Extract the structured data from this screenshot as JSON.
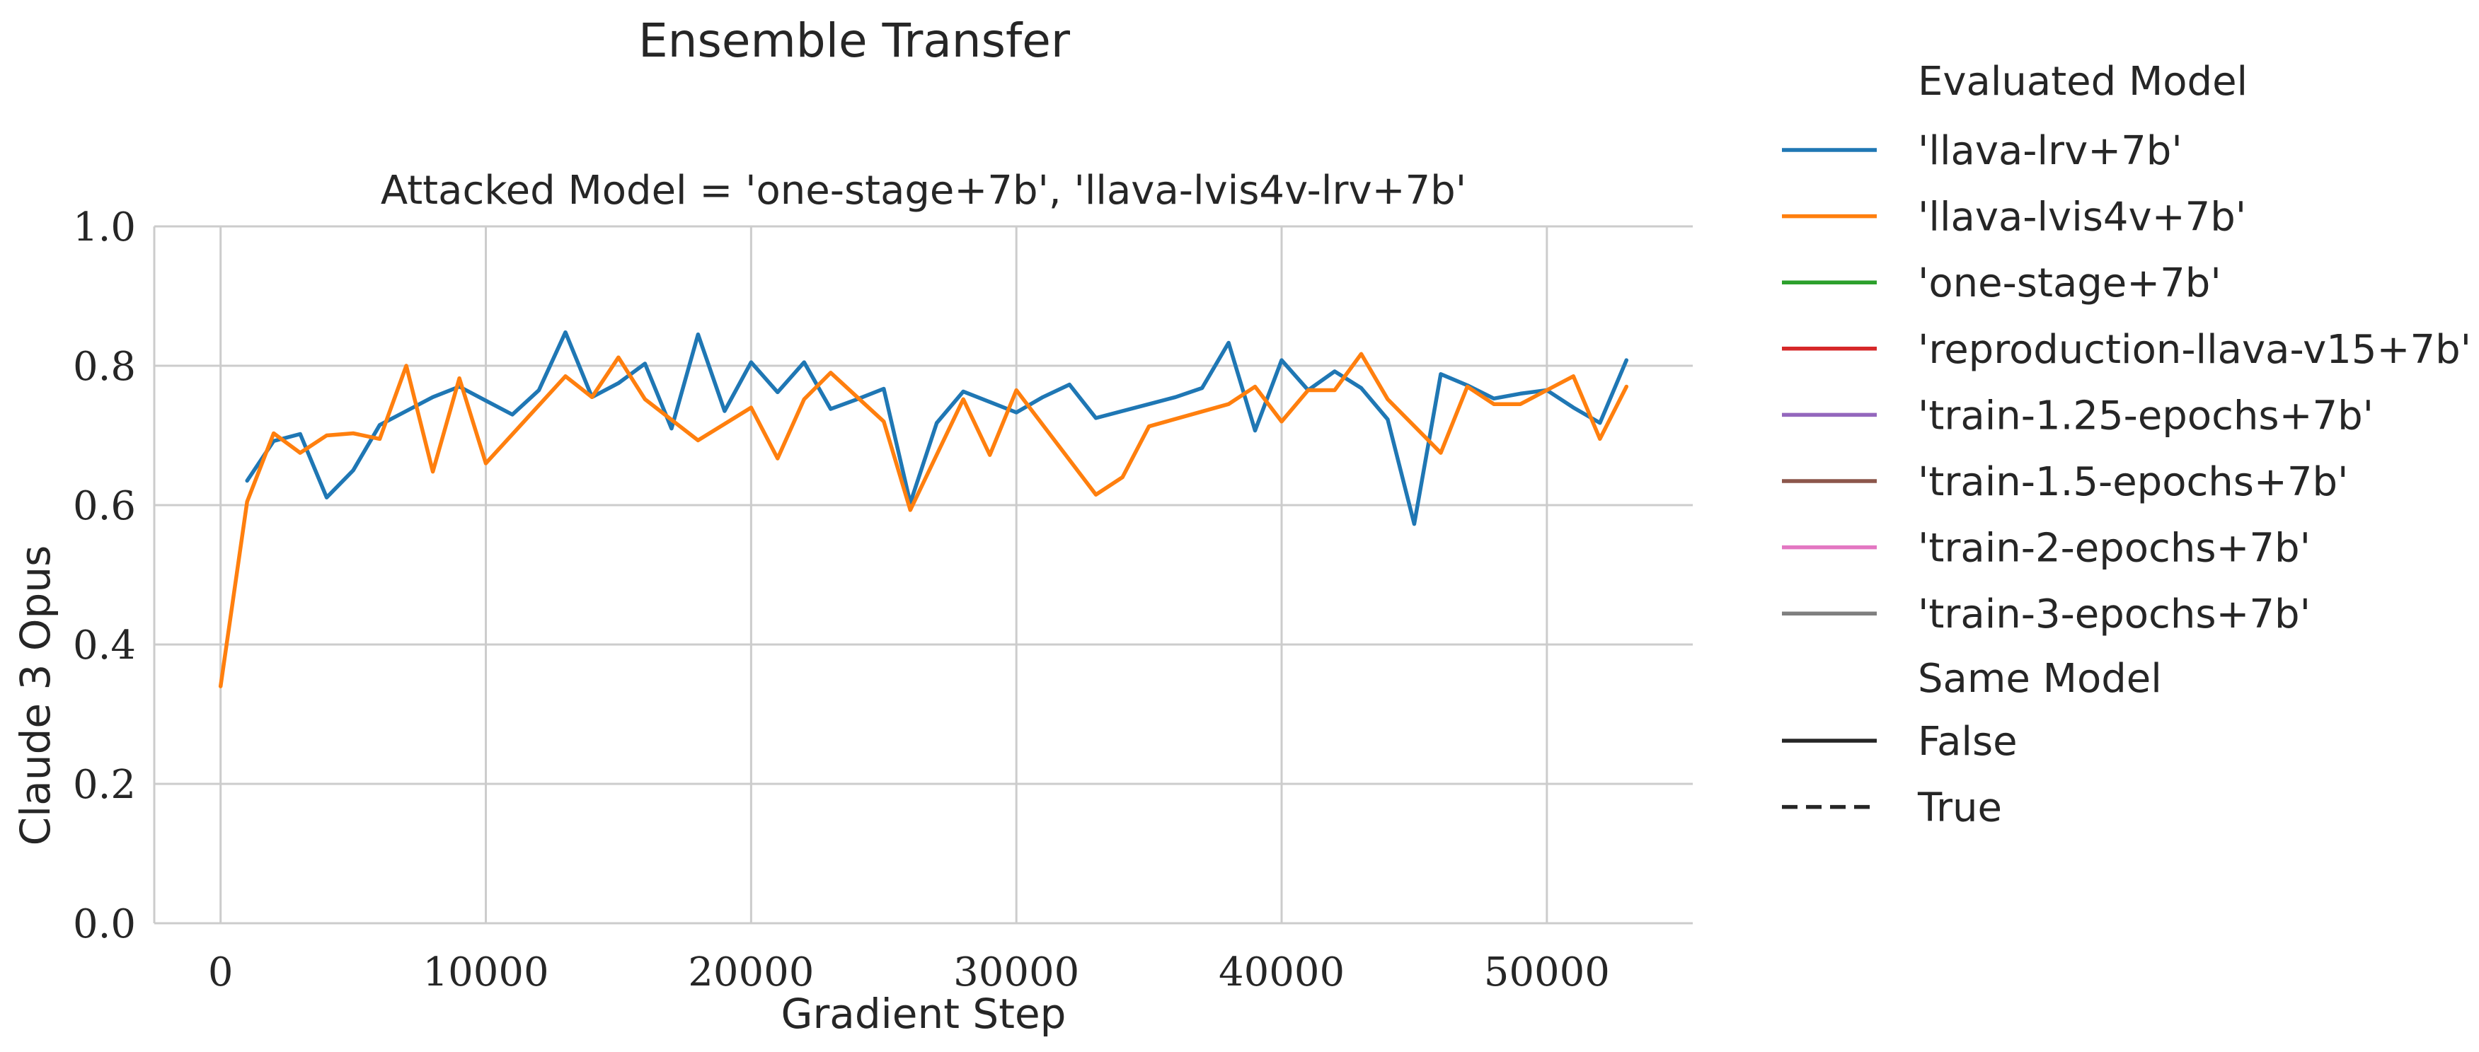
{
  "chart_data": {
    "type": "line",
    "title": "Ensemble Transfer",
    "subtitle": "Attacked Model = 'one-stage+7b', 'llava-lvis4v-lrv+7b'",
    "xlabel": "Gradient Step",
    "ylabel": "Claude 3 Opus",
    "xlim": [
      -2500,
      55500
    ],
    "ylim": [
      0.0,
      1.0
    ],
    "x_ticks": [
      0,
      10000,
      20000,
      30000,
      40000,
      50000
    ],
    "x_tick_labels": [
      "0",
      "10000",
      "20000",
      "30000",
      "40000",
      "50000"
    ],
    "y_ticks": [
      0.0,
      0.2,
      0.4,
      0.6,
      0.8,
      1.0
    ],
    "y_tick_labels": [
      "0.0",
      "0.2",
      "0.4",
      "0.6",
      "0.8",
      "1.0"
    ],
    "grid": true,
    "legend_placement": "outside-right",
    "series": [
      {
        "name": "'llava-lrv+7b'",
        "color": "#1f77b4",
        "x": [
          1000,
          2000,
          3000,
          4000,
          5000,
          6000,
          7000,
          8000,
          9000,
          10000,
          11000,
          12000,
          13000,
          14000,
          15000,
          16000,
          17000,
          18000,
          19000,
          20000,
          21000,
          22000,
          23000,
          24000,
          25000,
          26000,
          27000,
          28000,
          29000,
          30000,
          31000,
          32000,
          33000,
          34000,
          35000,
          36000,
          37000,
          38000,
          39000,
          40000,
          41000,
          42000,
          43000,
          44000,
          45000,
          46000,
          47000,
          48000,
          49000,
          50000,
          51000,
          52000,
          53000
        ],
        "y": [
          0.635,
          0.692,
          0.702,
          0.611,
          0.65,
          0.715,
          0.735,
          0.755,
          0.77,
          0.75,
          0.73,
          0.765,
          0.848,
          0.755,
          0.775,
          0.803,
          0.71,
          0.845,
          0.735,
          0.805,
          0.762,
          0.805,
          0.738,
          0.752,
          0.767,
          0.603,
          0.718,
          0.763,
          0.748,
          0.733,
          0.755,
          0.773,
          0.725,
          0.735,
          0.745,
          0.755,
          0.768,
          0.833,
          0.707,
          0.808,
          0.765,
          0.792,
          0.768,
          0.723,
          0.573,
          0.788,
          0.772,
          0.753,
          0.76,
          0.765,
          0.74,
          0.718,
          0.808
        ]
      },
      {
        "name": "'llava-lvis4v+7b'",
        "color": "#ff7f0e",
        "x": [
          0,
          1000,
          2000,
          3000,
          4000,
          5000,
          6000,
          7000,
          8000,
          9000,
          10000,
          13000,
          14000,
          15000,
          16000,
          18000,
          20000,
          21000,
          22000,
          23000,
          25000,
          26000,
          28000,
          29000,
          30000,
          33000,
          34000,
          35000,
          38000,
          39000,
          40000,
          41000,
          42000,
          43000,
          44000,
          46000,
          47000,
          48000,
          49000,
          50000,
          51000,
          52000,
          53000
        ],
        "y": [
          0.34,
          0.605,
          0.703,
          0.675,
          0.7,
          0.703,
          0.695,
          0.8,
          0.648,
          0.782,
          0.66,
          0.785,
          0.755,
          0.812,
          0.752,
          0.693,
          0.74,
          0.667,
          0.752,
          0.79,
          0.72,
          0.593,
          0.752,
          0.672,
          0.765,
          0.615,
          0.64,
          0.713,
          0.745,
          0.77,
          0.72,
          0.765,
          0.765,
          0.817,
          0.752,
          0.675,
          0.77,
          0.745,
          0.745,
          0.765,
          0.785,
          0.695,
          0.77
        ]
      },
      {
        "name": "'one-stage+7b'",
        "color": "#2ca02c",
        "x": [],
        "y": []
      },
      {
        "name": "'reproduction-llava-v15+7b'",
        "color": "#d62728",
        "x": [],
        "y": []
      },
      {
        "name": "'train-1.25-epochs+7b'",
        "color": "#9467bd",
        "x": [],
        "y": []
      },
      {
        "name": "'train-1.5-epochs+7b'",
        "color": "#8c564b",
        "x": [],
        "y": []
      },
      {
        "name": "'train-2-epochs+7b'",
        "color": "#e377c2",
        "x": [],
        "y": []
      },
      {
        "name": "'train-3-epochs+7b'",
        "color": "#7f7f7f",
        "x": [],
        "y": []
      }
    ],
    "legend": {
      "hue_title": "Evaluated Model",
      "style_title": "Same Model",
      "style_entries": [
        {
          "label": "False",
          "dash": "solid"
        },
        {
          "label": "True",
          "dash": "dashed"
        }
      ]
    }
  }
}
